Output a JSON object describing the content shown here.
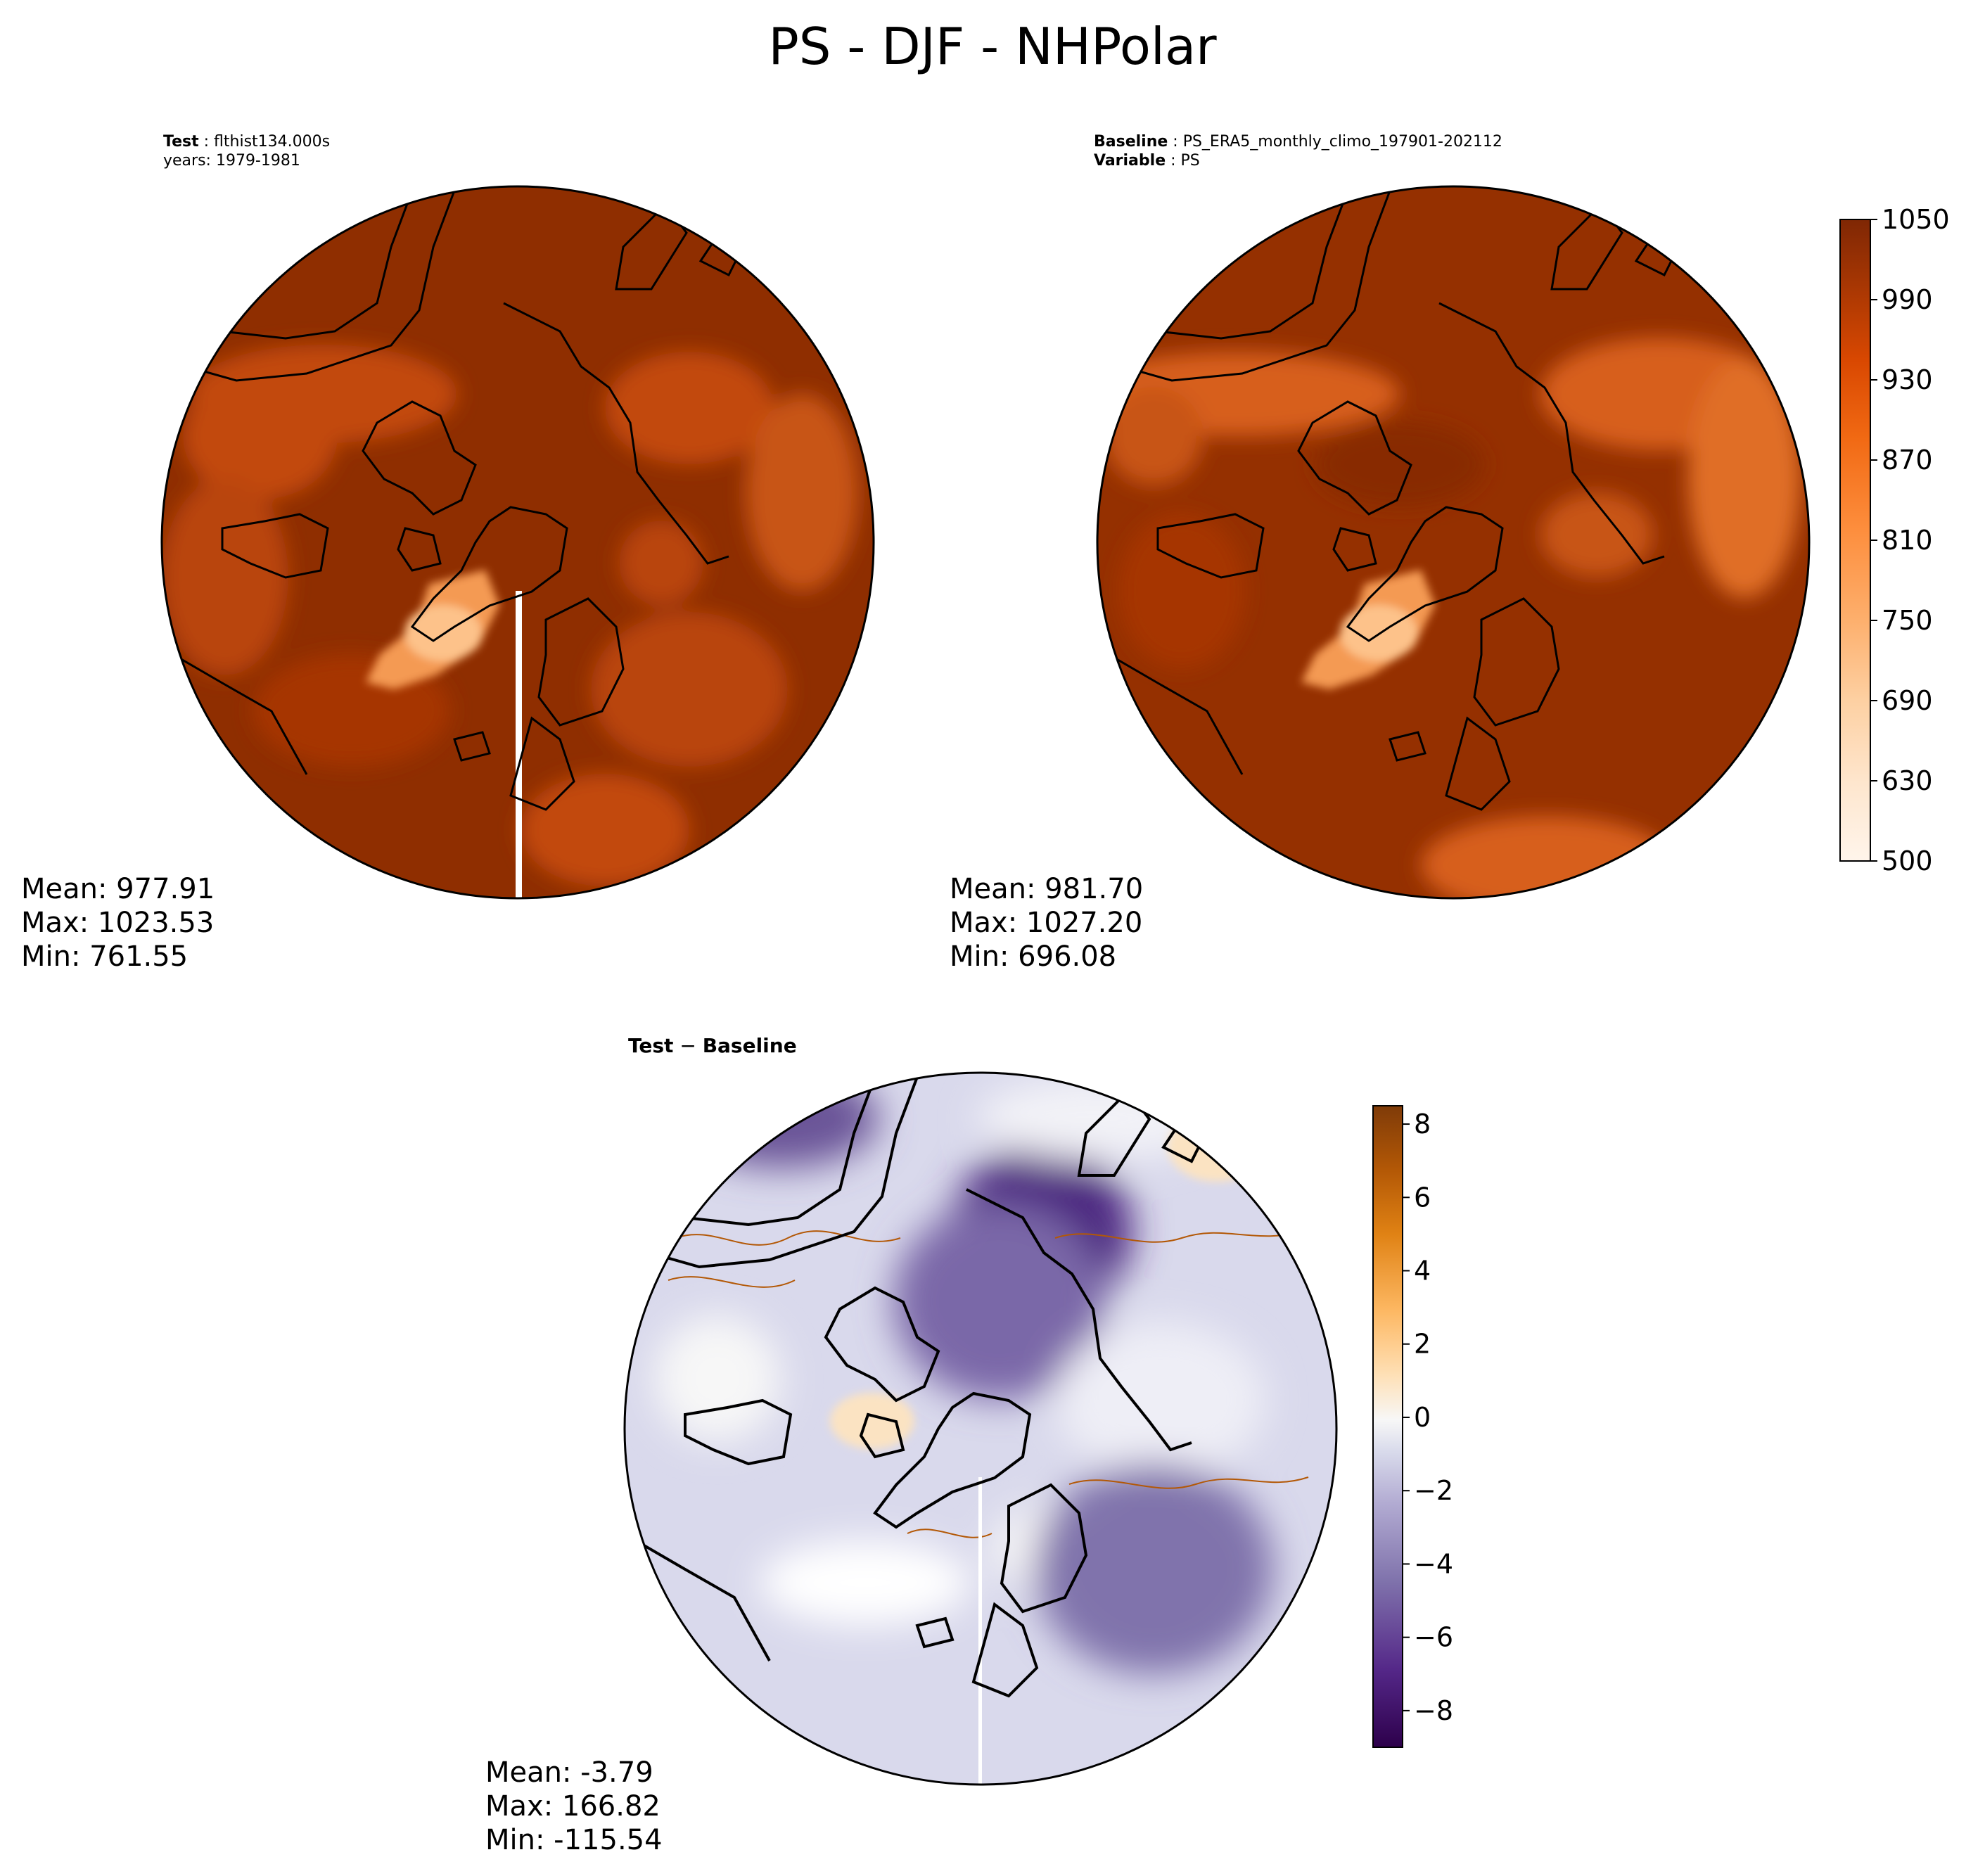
{
  "figure": {
    "title": "PS - DJF - NHPolar"
  },
  "panels": {
    "test": {
      "label_key": "Test",
      "label_value": "flthist134.000s",
      "years": "years: 1979-1981",
      "stats": {
        "mean": "Mean: 977.91",
        "max": "Max: 1023.53",
        "min": "Min: 761.55"
      }
    },
    "baseline": {
      "label_key": "Baseline",
      "label_value": "PS_ERA5_monthly_climo_197901-202112",
      "variable_key": "Variable",
      "variable_value": "PS",
      "stats": {
        "mean": "Mean: 981.70",
        "max": "Max: 1027.20",
        "min": "Min: 696.08"
      }
    },
    "diff": {
      "title_left": "Test",
      "title_op": " − ",
      "title_right": "Baseline",
      "stats": {
        "mean": "Mean: -3.79",
        "max": "Max: 166.82",
        "min": "Min: -115.54"
      }
    }
  },
  "colorbars": {
    "main": {
      "colormap": "Oranges",
      "range": [
        500,
        1050
      ],
      "ticks": [
        "1050",
        "990",
        "930",
        "870",
        "810",
        "750",
        "690",
        "630",
        "500"
      ],
      "colors": [
        "#fff5eb",
        "#fee6ce",
        "#fdd0a2",
        "#fdae6b",
        "#fd8d3c",
        "#f16913",
        "#d94801",
        "#a63603",
        "#7f2704"
      ]
    },
    "diff": {
      "colormap": "PuOr_r",
      "range": [
        -9,
        8.5
      ],
      "ticks": [
        "8",
        "6",
        "4",
        "2",
        "0",
        "−2",
        "−4",
        "−6",
        "−8"
      ],
      "colors": [
        "#2d004b",
        "#542788",
        "#8073ac",
        "#b2abd2",
        "#d8daeb",
        "#f7f7f7",
        "#fee0b6",
        "#fdb863",
        "#e08214",
        "#b35806",
        "#7f3b08"
      ]
    }
  },
  "colors": {
    "test_field": "#8f2e00",
    "baseline_field": "#953000",
    "greenland_high": "#fdc28a",
    "diff_ocean": "#d9d9ec",
    "diff_arctic": "#4b2580",
    "coastline": "#000000"
  }
}
